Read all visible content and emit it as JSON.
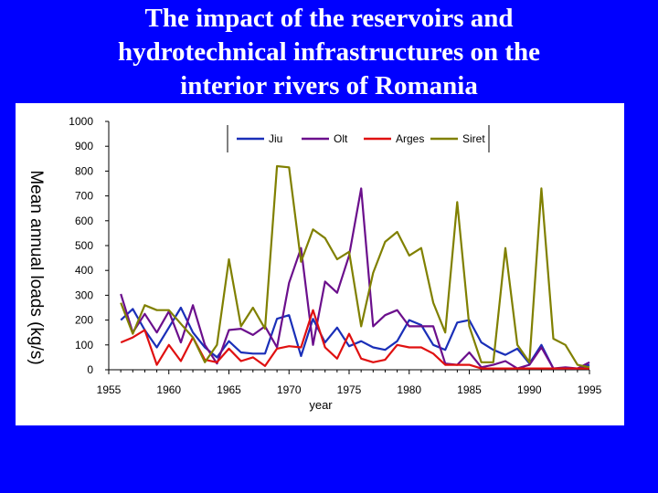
{
  "slide": {
    "title_lines": [
      "The impact of the reservoirs and",
      "hydrotechnical infrastructures on the",
      "interior rivers of Romania"
    ]
  },
  "colors": {
    "background": "#0000ff",
    "panel": "#ffffff",
    "Jiu": "#1a2fb8",
    "Olt": "#6b0f8c",
    "Arges": "#e01010",
    "Siret": "#808000"
  },
  "chart_data": {
    "type": "line",
    "title": "",
    "xlabel": "year",
    "ylabel": "Mean annual loads (kg/s)",
    "xlim": [
      1955,
      1995
    ],
    "ylim": [
      0,
      1000
    ],
    "x_ticks": [
      1955,
      1960,
      1965,
      1970,
      1975,
      1980,
      1985,
      1990,
      1995
    ],
    "y_ticks": [
      0,
      100,
      200,
      300,
      400,
      500,
      600,
      700,
      800,
      900,
      1000
    ],
    "legend_position": "top-right",
    "grid": false,
    "x": [
      1956,
      1957,
      1958,
      1959,
      1960,
      1961,
      1962,
      1963,
      1964,
      1965,
      1966,
      1967,
      1968,
      1969,
      1970,
      1971,
      1972,
      1973,
      1974,
      1975,
      1976,
      1977,
      1978,
      1979,
      1980,
      1981,
      1982,
      1983,
      1984,
      1985,
      1986,
      1987,
      1988,
      1989,
      1990,
      1991,
      1992,
      1993,
      1994,
      1995
    ],
    "series": [
      {
        "name": "Jiu",
        "values": [
          200,
          245,
          160,
          90,
          170,
          250,
          150,
          90,
          50,
          115,
          70,
          65,
          65,
          205,
          220,
          55,
          205,
          110,
          170,
          95,
          115,
          90,
          80,
          115,
          200,
          180,
          100,
          80,
          190,
          200,
          110,
          80,
          60,
          85,
          25,
          100,
          5,
          5,
          5,
          20
        ]
      },
      {
        "name": "Olt",
        "values": [
          305,
          150,
          225,
          150,
          235,
          110,
          260,
          100,
          25,
          160,
          165,
          140,
          175,
          90,
          350,
          490,
          100,
          355,
          310,
          460,
          730,
          175,
          220,
          240,
          175,
          175,
          175,
          25,
          20,
          70,
          10,
          20,
          35,
          5,
          20,
          90,
          5,
          10,
          5,
          30
        ]
      },
      {
        "name": "Arges",
        "values": [
          110,
          130,
          160,
          20,
          100,
          35,
          130,
          40,
          30,
          85,
          35,
          50,
          15,
          85,
          95,
          90,
          240,
          90,
          45,
          145,
          45,
          30,
          40,
          100,
          90,
          90,
          65,
          20,
          20,
          20,
          5,
          5,
          5,
          5,
          5,
          5,
          5,
          5,
          5,
          5
        ]
      },
      {
        "name": "Siret",
        "values": [
          270,
          145,
          260,
          240,
          240,
          185,
          130,
          30,
          100,
          445,
          175,
          250,
          165,
          820,
          815,
          435,
          565,
          530,
          445,
          475,
          175,
          390,
          515,
          555,
          460,
          490,
          270,
          150,
          675,
          175,
          30,
          30,
          490,
          100,
          30,
          730,
          125,
          100,
          20,
          10
        ]
      }
    ]
  }
}
